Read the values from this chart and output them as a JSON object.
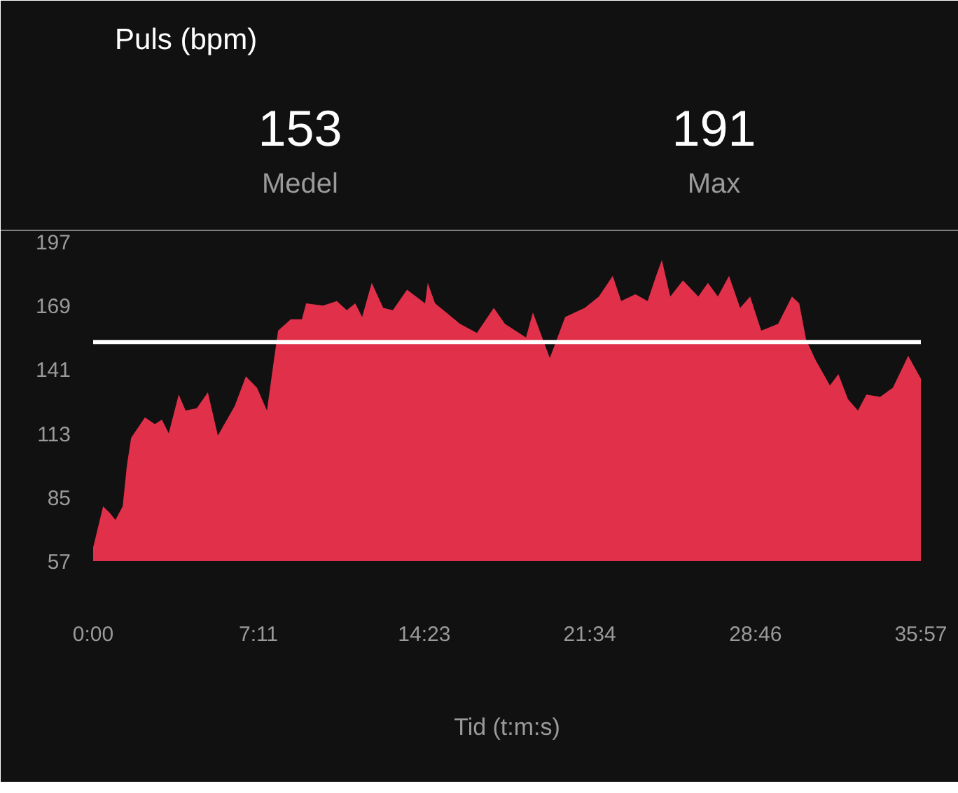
{
  "chart_data": {
    "type": "area",
    "title": "Puls (bpm)",
    "xlabel": "Tid (t:m:s)",
    "annotations": [
      "153",
      "Medel",
      "191",
      "Max"
    ],
    "x": [
      0,
      26,
      44,
      58,
      77,
      88,
      99,
      135,
      161,
      179,
      197,
      223,
      241,
      270,
      299,
      325,
      369,
      398,
      427,
      453,
      471,
      482,
      515,
      544,
      555,
      599,
      635,
      661,
      683,
      701,
      726,
      756,
      781,
      818,
      865,
      872,
      891,
      920,
      956,
      1000,
      1044,
      1073,
      1128,
      1146,
      1190,
      1230,
      1281,
      1318,
      1354,
      1376,
      1413,
      1445,
      1467,
      1482,
      1504,
      1537,
      1577,
      1602,
      1628,
      1657,
      1686,
      1712,
      1741,
      1785,
      1821,
      1840,
      1858,
      1883,
      1920,
      1942,
      1967,
      1993,
      2015,
      2051,
      2084,
      2124,
      2157
    ],
    "series": [
      {
        "color": "#e0304a",
        "values": [
          63,
          81,
          78,
          75,
          81,
          99,
          111,
          120,
          117,
          119,
          113,
          130,
          123,
          124,
          131,
          112,
          125,
          138,
          133,
          123,
          145,
          158,
          163,
          163,
          170,
          169,
          171,
          167,
          170,
          164,
          179,
          168,
          167,
          176,
          170,
          179,
          170,
          166,
          161,
          157,
          168,
          161,
          155,
          166,
          146,
          164,
          168,
          173,
          182,
          171,
          174,
          171,
          182,
          189,
          173,
          180,
          173,
          179,
          173,
          182,
          168,
          173,
          158,
          161,
          173,
          170,
          154,
          145,
          134,
          139,
          128,
          123,
          130,
          129,
          133,
          147,
          137
        ]
      }
    ],
    "xlim": [
      0,
      2157
    ],
    "xticks": [
      {
        "value": 0,
        "label": "0:00"
      },
      {
        "value": 431,
        "label": "7:11"
      },
      {
        "value": 863,
        "label": "14:23"
      },
      {
        "value": 1294,
        "label": "21:34"
      },
      {
        "value": 1726,
        "label": "28:46"
      },
      {
        "value": 2157,
        "label": "35:57"
      }
    ],
    "ylim": [
      57,
      197
    ],
    "yticks": [
      57,
      85,
      113,
      141,
      169,
      197
    ],
    "ref_lines": [
      {
        "axis": "y",
        "value": 153,
        "color": "#ffffff"
      }
    ],
    "grid": false
  }
}
